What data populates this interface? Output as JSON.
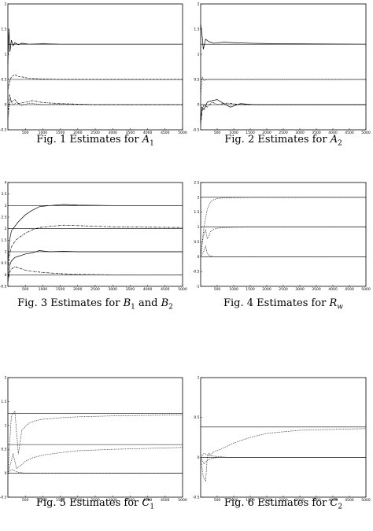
{
  "chart_data": [
    {
      "type": "line",
      "caption": {
        "prefix": "Fig. 1   Estimates for ",
        "var": "A",
        "sub": "1",
        "suffix": ""
      },
      "xlim": [
        0,
        5000
      ],
      "ylim": [
        -0.5,
        2
      ],
      "xticks": [
        500,
        1000,
        1500,
        2000,
        2500,
        3000,
        3500,
        4000,
        4500,
        5000
      ],
      "yticks": [
        -0.5,
        0,
        0.5,
        1,
        1.5,
        2
      ],
      "reference_lines": [
        1.2,
        0.5,
        0
      ],
      "series": [
        {
          "style": "solid",
          "x": [
            0,
            30,
            60,
            100,
            150,
            200,
            300,
            400,
            600,
            1000,
            1500,
            2500,
            5000
          ],
          "y": [
            0.8,
            1.5,
            1.05,
            1.28,
            1.17,
            1.23,
            1.19,
            1.22,
            1.2,
            1.21,
            1.2,
            1.2,
            1.2
          ]
        },
        {
          "style": "dashed",
          "x": [
            0,
            50,
            100,
            200,
            300,
            400,
            600,
            1000,
            1500,
            2500,
            5000
          ],
          "y": [
            0.3,
            0.45,
            0.55,
            0.6,
            0.56,
            0.55,
            0.52,
            0.51,
            0.5,
            0.5,
            0.5
          ]
        },
        {
          "style": "dashdot",
          "x": [
            0,
            50,
            100,
            200,
            300,
            500,
            700,
            1000,
            1500,
            2500,
            5000
          ],
          "y": [
            -0.2,
            0.2,
            0.05,
            0.1,
            0.02,
            0.05,
            0.08,
            0.04,
            0.02,
            0.0,
            0.0
          ]
        },
        {
          "style": "dotted",
          "x": [
            0,
            40,
            80,
            150,
            250,
            400,
            600,
            1000,
            1500,
            2500,
            5000
          ],
          "y": [
            -0.3,
            -0.05,
            0.1,
            0.0,
            0.04,
            -0.02,
            0.03,
            0.0,
            0.01,
            0.0,
            0.0
          ]
        }
      ]
    },
    {
      "type": "line",
      "caption": {
        "prefix": "Fig. 2   Estimates for ",
        "var": "A",
        "sub": "2",
        "suffix": ""
      },
      "xlim": [
        0,
        5000
      ],
      "ylim": [
        -0.5,
        2
      ],
      "xticks": [
        500,
        1000,
        1500,
        2000,
        2500,
        3000,
        3500,
        4000,
        4500,
        5000
      ],
      "yticks": [
        -0.5,
        0,
        0.5,
        1,
        1.5,
        2
      ],
      "reference_lines": [
        1.2,
        0.5,
        0
      ],
      "series": [
        {
          "style": "solid",
          "x": [
            0,
            40,
            80,
            150,
            250,
            400,
            700,
            1000,
            1500,
            2500,
            5000
          ],
          "y": [
            1.6,
            1.4,
            1.1,
            1.3,
            1.25,
            1.22,
            1.24,
            1.23,
            1.22,
            1.21,
            1.2
          ]
        },
        {
          "style": "dotted",
          "x": [
            0,
            50,
            100,
            200,
            400,
            700,
            1000,
            2000,
            5000
          ],
          "y": [
            0.2,
            0.55,
            0.48,
            0.5,
            0.5,
            0.5,
            0.5,
            0.5,
            0.5
          ]
        },
        {
          "style": "solid",
          "x": [
            0,
            40,
            100,
            200,
            350,
            500,
            700,
            900,
            1200,
            1600,
            2500,
            5000
          ],
          "y": [
            -0.35,
            -0.05,
            -0.1,
            0.05,
            0.08,
            0.1,
            0.02,
            -0.05,
            0.02,
            0.0,
            0.0,
            0.0
          ]
        },
        {
          "style": "dashdot",
          "x": [
            0,
            50,
            100,
            200,
            350,
            500,
            800,
            1200,
            2000,
            5000
          ],
          "y": [
            -0.4,
            -0.1,
            0.0,
            -0.05,
            0.05,
            0.0,
            0.03,
            0.0,
            0.0,
            0.0
          ]
        }
      ]
    },
    {
      "type": "line",
      "caption": {
        "prefix": "Fig. 3   Estimates for ",
        "var": "B",
        "sub": "1",
        "suffix": " and ",
        "var2": "B",
        "sub2": "2"
      },
      "xlim": [
        0,
        5000
      ],
      "ylim": [
        -0.5,
        4
      ],
      "xticks": [
        500,
        1000,
        1500,
        2000,
        2500,
        3000,
        3500,
        4000,
        4500,
        5000
      ],
      "yticks": [
        -0.5,
        0,
        0.5,
        1,
        1.5,
        2,
        2.5,
        3,
        3.5,
        4
      ],
      "reference_lines": [
        3,
        2,
        1,
        0
      ],
      "series": [
        {
          "style": "solid",
          "x": [
            0,
            50,
            100,
            200,
            300,
            500,
            700,
            900,
            1200,
            1600,
            2000,
            3000,
            5000
          ],
          "y": [
            0.5,
            1.5,
            1.9,
            2.1,
            2.3,
            2.6,
            2.8,
            2.95,
            3.0,
            3.05,
            3.02,
            3.0,
            3.0
          ]
        },
        {
          "style": "dashdot",
          "x": [
            0,
            50,
            100,
            200,
            300,
            500,
            700,
            900,
            1200,
            1600,
            2200,
            3000,
            5000
          ],
          "y": [
            0.2,
            0.9,
            1.2,
            1.45,
            1.6,
            1.8,
            1.95,
            2.05,
            2.1,
            2.15,
            2.12,
            2.08,
            2.05
          ]
        },
        {
          "style": "solid",
          "x": [
            0,
            50,
            100,
            200,
            300,
            500,
            700,
            900,
            1200,
            1600,
            2000,
            3000,
            5000
          ],
          "y": [
            -0.2,
            0.4,
            0.6,
            0.75,
            0.8,
            0.9,
            0.95,
            1.05,
            1.0,
            1.02,
            1.0,
            1.0,
            1.0
          ]
        },
        {
          "style": "dashdot",
          "x": [
            0,
            50,
            100,
            200,
            350,
            500,
            700,
            1000,
            1500,
            2000,
            3000,
            5000
          ],
          "y": [
            -0.3,
            0.1,
            0.25,
            0.35,
            0.28,
            0.2,
            0.15,
            0.1,
            0.05,
            0.02,
            0.0,
            0.0
          ]
        }
      ]
    },
    {
      "type": "line",
      "caption": {
        "prefix": "Fig. 4   Estimates for ",
        "var": "R",
        "sub": "w",
        "suffix": ""
      },
      "xlim": [
        0,
        5000
      ],
      "ylim": [
        -1,
        2.5
      ],
      "xticks": [
        500,
        1000,
        1500,
        2000,
        2500,
        3000,
        3500,
        4000,
        4500,
        5000
      ],
      "yticks": [
        -1,
        -0.5,
        0,
        0.5,
        1,
        1.5,
        2,
        2.5
      ],
      "reference_lines": [
        2,
        1,
        0
      ],
      "series": [
        {
          "style": "dotted",
          "x": [
            0,
            100,
            200,
            300,
            400,
            500,
            700,
            1000,
            1500,
            2500,
            5000
          ],
          "y": [
            0.0,
            1.0,
            1.6,
            1.85,
            1.92,
            1.96,
            1.98,
            1.99,
            2.0,
            2.0,
            2.0
          ]
        },
        {
          "style": "dotted",
          "x": [
            0,
            80,
            150,
            200,
            250,
            300,
            400,
            500,
            700,
            1000,
            1500,
            2500,
            5000
          ],
          "y": [
            0.0,
            0.7,
            0.9,
            0.6,
            0.7,
            0.85,
            0.93,
            0.96,
            0.98,
            0.99,
            1.0,
            1.0,
            1.0
          ]
        },
        {
          "style": "dotted",
          "x": [
            0,
            80,
            150,
            200,
            250,
            300,
            400,
            600,
            1000,
            2000,
            5000
          ],
          "y": [
            0.0,
            0.15,
            0.35,
            0.1,
            0.05,
            0.02,
            0.0,
            0.0,
            0.0,
            0.0,
            0.0
          ]
        }
      ]
    },
    {
      "type": "line",
      "caption": {
        "prefix": "Fig. 5   Estimates for ",
        "var": "C",
        "sub": "1",
        "suffix": ""
      },
      "xlim": [
        0,
        5000
      ],
      "ylim": [
        -0.5,
        2
      ],
      "xticks": [
        500,
        1000,
        1500,
        2000,
        2500,
        3000,
        3500,
        4000,
        4500,
        5000
      ],
      "yticks": [
        -0.5,
        0,
        0.5,
        1,
        1.5,
        2
      ],
      "reference_lines": [
        1.25,
        0.6,
        0
      ],
      "series": [
        {
          "style": "dotted",
          "x": [
            0,
            100,
            200,
            300,
            400,
            600,
            800,
            1000,
            1500,
            2000,
            3000,
            5000
          ],
          "y": [
            0.0,
            1.2,
            1.3,
            0.4,
            0.9,
            1.05,
            1.1,
            1.13,
            1.16,
            1.18,
            1.2,
            1.22
          ]
        },
        {
          "style": "dotted",
          "x": [
            0,
            150,
            250,
            350,
            500,
            700,
            1000,
            1500,
            2000,
            3000,
            4000,
            5000
          ],
          "y": [
            0.0,
            0.4,
            0.1,
            0.15,
            0.25,
            0.32,
            0.38,
            0.43,
            0.47,
            0.5,
            0.52,
            0.54
          ]
        },
        {
          "style": "dotted",
          "x": [
            0,
            100,
            200,
            300,
            500,
            800,
            1200,
            2000,
            5000
          ],
          "y": [
            0.0,
            0.08,
            0.05,
            0.02,
            0.0,
            0.0,
            0.0,
            0.0,
            0.0
          ]
        }
      ]
    },
    {
      "type": "line",
      "caption": {
        "prefix": "Fig. 6   Estimates for ",
        "var": "C",
        "sub": "2",
        "suffix": ""
      },
      "xlim": [
        0,
        5000
      ],
      "ylim": [
        -0.5,
        1
      ],
      "xticks": [
        500,
        1000,
        1500,
        2000,
        2500,
        3000,
        3500,
        4000,
        4500,
        5000
      ],
      "yticks": [
        -0.5,
        0,
        0.5,
        1
      ],
      "reference_lines": [
        0.38,
        0
      ],
      "series": [
        {
          "style": "dotted",
          "x": [
            0,
            80,
            150,
            200,
            250,
            300,
            400,
            600,
            800,
            1000,
            1500,
            2000,
            3000,
            5000
          ],
          "y": [
            0.0,
            -0.25,
            -0.3,
            0.0,
            0.05,
            0.03,
            0.07,
            0.1,
            0.14,
            0.18,
            0.25,
            0.3,
            0.34,
            0.36
          ]
        },
        {
          "style": "dotted",
          "x": [
            0,
            100,
            200,
            300,
            500,
            800,
            1200,
            2000,
            5000
          ],
          "y": [
            0.0,
            0.05,
            0.03,
            0.02,
            0.01,
            0.0,
            0.0,
            0.0,
            0.0
          ]
        },
        {
          "style": "dotted",
          "x": [
            0,
            100,
            200,
            300,
            500,
            800,
            1200,
            2000,
            5000
          ],
          "y": [
            0.0,
            -0.08,
            -0.04,
            -0.02,
            0.0,
            0.0,
            0.0,
            0.0,
            0.0
          ]
        }
      ]
    }
  ]
}
